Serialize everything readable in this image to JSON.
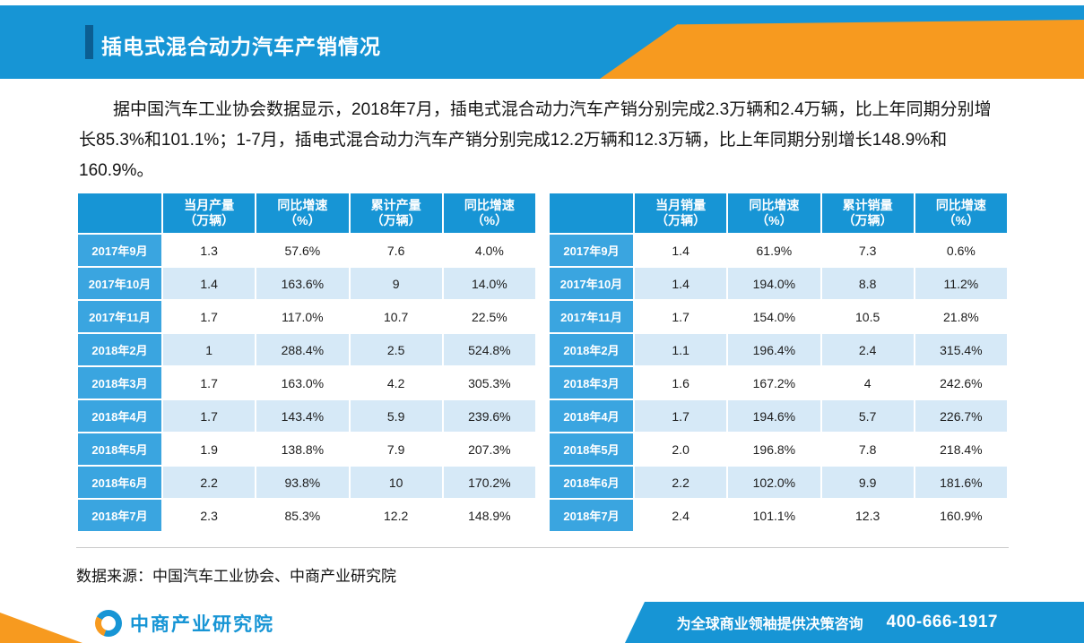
{
  "page": {
    "title": "插电式混合动力汽车产销情况",
    "paragraph": "据中国汽车工业协会数据显示，2018年7月，插电式混合动力汽车产销分别完成2.3万辆和2.4万辆，比上年同期分别增长85.3%和101.1%；1-7月，插电式混合动力汽车产销分别完成12.2万辆和12.3万辆，比上年同期分别增长148.9%和160.9%。",
    "source_note": "数据来源：中国汽车工业协会、中商产业研究院"
  },
  "colors": {
    "primary_blue": "#1795d5",
    "accent_orange": "#f79a1f",
    "row_label_blue": "#3aa5e0",
    "alt_row_blue": "#d6e9f7",
    "title_accent_navy": "#0b5e92"
  },
  "tables": [
    {
      "name": "production",
      "columns": [
        "",
        "当月产量\n（万辆）",
        "同比增速\n（%）",
        "累计产量\n（万辆）",
        "同比增速\n（%）"
      ],
      "rows": [
        {
          "label": "2017年9月",
          "values": [
            "1.3",
            "57.6%",
            "7.6",
            "4.0%"
          ]
        },
        {
          "label": "2017年10月",
          "values": [
            "1.4",
            "163.6%",
            "9",
            "14.0%"
          ]
        },
        {
          "label": "2017年11月",
          "values": [
            "1.7",
            "117.0%",
            "10.7",
            "22.5%"
          ]
        },
        {
          "label": "2018年2月",
          "values": [
            "1",
            "288.4%",
            "2.5",
            "524.8%"
          ]
        },
        {
          "label": "2018年3月",
          "values": [
            "1.7",
            "163.0%",
            "4.2",
            "305.3%"
          ]
        },
        {
          "label": "2018年4月",
          "values": [
            "1.7",
            "143.4%",
            "5.9",
            "239.6%"
          ]
        },
        {
          "label": "2018年5月",
          "values": [
            "1.9",
            "138.8%",
            "7.9",
            "207.3%"
          ]
        },
        {
          "label": "2018年6月",
          "values": [
            "2.2",
            "93.8%",
            "10",
            "170.2%"
          ]
        },
        {
          "label": "2018年7月",
          "values": [
            "2.3",
            "85.3%",
            "12.2",
            "148.9%"
          ]
        }
      ]
    },
    {
      "name": "sales",
      "columns": [
        "",
        "当月销量\n（万辆）",
        "同比增速\n（%）",
        "累计销量\n（万辆）",
        "同比增速\n（%）"
      ],
      "rows": [
        {
          "label": "2017年9月",
          "values": [
            "1.4",
            "61.9%",
            "7.3",
            "0.6%"
          ]
        },
        {
          "label": "2017年10月",
          "values": [
            "1.4",
            "194.0%",
            "8.8",
            "11.2%"
          ]
        },
        {
          "label": "2017年11月",
          "values": [
            "1.7",
            "154.0%",
            "10.5",
            "21.8%"
          ]
        },
        {
          "label": "2018年2月",
          "values": [
            "1.1",
            "196.4%",
            "2.4",
            "315.4%"
          ]
        },
        {
          "label": "2018年3月",
          "values": [
            "1.6",
            "167.2%",
            "4",
            "242.6%"
          ]
        },
        {
          "label": "2018年4月",
          "values": [
            "1.7",
            "194.6%",
            "5.7",
            "226.7%"
          ]
        },
        {
          "label": "2018年5月",
          "values": [
            "2.0",
            "196.8%",
            "7.8",
            "218.4%"
          ]
        },
        {
          "label": "2018年6月",
          "values": [
            "2.2",
            "102.0%",
            "9.9",
            "181.6%"
          ]
        },
        {
          "label": "2018年7月",
          "values": [
            "2.4",
            "101.1%",
            "12.3",
            "160.9%"
          ]
        }
      ]
    }
  ],
  "footer": {
    "logo_text": "中商产业研究院",
    "slogan": "为全球商业领袖提供决策咨询",
    "phone": "400-666-1917"
  }
}
